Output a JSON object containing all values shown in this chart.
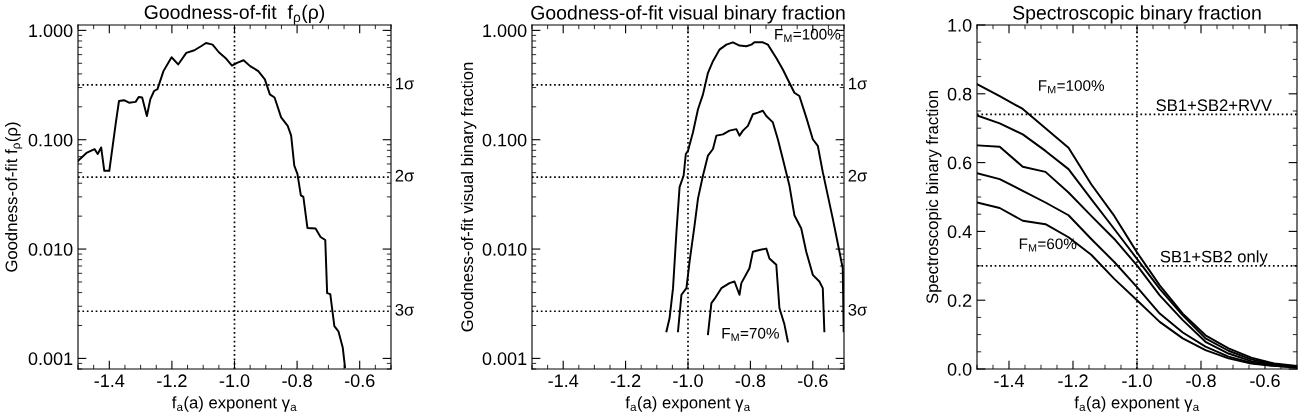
{
  "chart_data": [
    {
      "type": "line",
      "title": "Goodness-of-fit  f$_{ρ}$(ρ)",
      "xlabel": "f$_{a}$(a) exponent γ$_{a}$",
      "ylabel": "Goodness-of-fit f$_{ρ}$(ρ)",
      "log": "y",
      "grid": false,
      "marker": "none",
      "line_style": "solid",
      "xlim": [
        -1.5,
        -0.5
      ],
      "xticks": [
        {
          "value": -1.4,
          "label": "-1.4"
        },
        {
          "value": -1.2,
          "label": "-1.2"
        },
        {
          "value": -1.0,
          "label": "-1.0"
        },
        {
          "value": -0.8,
          "label": "-0.8"
        },
        {
          "value": -0.6,
          "label": "-0.6"
        }
      ],
      "ylim": [
        0.0008,
        1.12
      ],
      "yticks": [
        {
          "value": 0.001,
          "label": "0.001"
        },
        {
          "value": 0.01,
          "label": "0.010"
        },
        {
          "value": 0.1,
          "label": "0.100"
        },
        {
          "value": 1,
          "label": "1.000"
        }
      ],
      "ref_lines": [
        {
          "axis": "y",
          "value": 0.317,
          "label": "1σ",
          "line_style": "dotted",
          "color": "#000000"
        },
        {
          "axis": "y",
          "value": 0.0455,
          "label": "2σ",
          "line_style": "dotted",
          "color": "#000000"
        },
        {
          "axis": "y",
          "value": 0.0027,
          "label": "3σ",
          "line_style": "dotted",
          "color": "#000000"
        },
        {
          "axis": "x",
          "value": -1.0,
          "line_style": "dotted",
          "color": "#000000"
        }
      ],
      "series": [
        {
          "color": "#000000",
          "x": [
            -1.5,
            -1.473,
            -1.447,
            -1.437,
            -1.426,
            -1.416,
            -1.4,
            -1.379,
            -1.369,
            -1.353,
            -1.337,
            -1.316,
            -1.306,
            -1.295,
            -1.28,
            -1.269,
            -1.257,
            -1.246,
            -1.227,
            -1.201,
            -1.18,
            -1.154,
            -1.128,
            -1.107,
            -1.091,
            -1.07,
            -1.05,
            -1.029,
            -1.008,
            -0.992,
            -0.971,
            -0.95,
            -0.924,
            -0.903,
            -0.887,
            -0.872,
            -0.851,
            -0.83,
            -0.819,
            -0.809,
            -0.799,
            -0.788,
            -0.78,
            -0.767,
            -0.741,
            -0.725,
            -0.71,
            -0.704,
            -0.694,
            -0.681,
            -0.668,
            -0.654,
            -0.647
          ],
          "values": [
            0.064,
            0.0757,
            0.082,
            0.074,
            0.085,
            0.052,
            0.052,
            0.144,
            0.226,
            0.23,
            0.218,
            0.222,
            0.246,
            0.243,
            0.165,
            0.234,
            0.279,
            0.29,
            0.424,
            0.568,
            0.488,
            0.622,
            0.658,
            0.716,
            0.767,
            0.741,
            0.631,
            0.56,
            0.477,
            0.505,
            0.533,
            0.471,
            0.424,
            0.356,
            0.26,
            0.243,
            0.16,
            0.134,
            0.109,
            0.058,
            0.0488,
            0.031,
            0.03,
            0.0156,
            0.0154,
            0.0129,
            0.0121,
            0.00395,
            0.00387,
            0.00197,
            0.00177,
            0.00125,
            0.00083
          ]
        }
      ]
    },
    {
      "type": "line",
      "title": "Goodness-of-fit visual binary fraction",
      "xlabel": "f$_{a}$(a) exponent γ$_{a}$",
      "ylabel": "Goodness-of-fit visual binary fraction",
      "log": "y",
      "grid": false,
      "marker": "none",
      "line_style": "solid",
      "xlim": [
        -1.5,
        -0.5
      ],
      "xticks": [
        {
          "value": -1.4,
          "label": "-1.4"
        },
        {
          "value": -1.2,
          "label": "-1.2"
        },
        {
          "value": -1.0,
          "label": "-1.0"
        },
        {
          "value": -0.8,
          "label": "-0.8"
        },
        {
          "value": -0.6,
          "label": "-0.6"
        }
      ],
      "ylim": [
        0.0008,
        1.12
      ],
      "yticks": [
        {
          "value": 0.001,
          "label": "0.001"
        },
        {
          "value": 0.01,
          "label": "0.010"
        },
        {
          "value": 0.1,
          "label": "0.100"
        },
        {
          "value": 1,
          "label": "1.000"
        }
      ],
      "ref_lines": [
        {
          "axis": "y",
          "value": 0.317,
          "label": "1σ",
          "line_style": "dotted",
          "color": "#000000"
        },
        {
          "axis": "y",
          "value": 0.0455,
          "label": "2σ",
          "line_style": "dotted",
          "color": "#000000"
        },
        {
          "axis": "y",
          "value": 0.0027,
          "label": "3σ",
          "line_style": "dotted",
          "color": "#000000"
        },
        {
          "axis": "x",
          "value": -1.0,
          "line_style": "dotted",
          "color": "#000000"
        }
      ],
      "annotations": [
        "F$_{M}$=100%",
        "F$_{M}$=70%"
      ],
      "series": [
        {
          "color": "#000000",
          "x": [
            -1.069,
            -1.059,
            -1.048,
            -1.037,
            -1.027,
            -1.014,
            -1.007,
            -1.0,
            -0.984,
            -0.968,
            -0.952,
            -0.936,
            -0.92,
            -0.899,
            -0.877,
            -0.856,
            -0.835,
            -0.813,
            -0.797,
            -0.787,
            -0.76,
            -0.744,
            -0.717,
            -0.696,
            -0.675,
            -0.659,
            -0.643,
            -0.621,
            -0.6,
            -0.584,
            -0.568,
            -0.552,
            -0.536,
            -0.52,
            -0.504,
            -0.501
          ],
          "values": [
            0.00177,
            0.00234,
            0.00439,
            0.0144,
            0.0369,
            0.0471,
            0.074,
            0.0794,
            0.117,
            0.19,
            0.26,
            0.409,
            0.523,
            0.667,
            0.741,
            0.778,
            0.726,
            0.716,
            0.741,
            0.778,
            0.778,
            0.741,
            0.56,
            0.439,
            0.332,
            0.269,
            0.251,
            0.16,
            0.101,
            0.088,
            0.0505,
            0.031,
            0.019,
            0.0113,
            0.00667,
            0.00177
          ]
        },
        {
          "color": "#000000",
          "x": [
            -1.032,
            -1.021,
            -1.005,
            -0.995,
            -0.979,
            -0.968,
            -0.952,
            -0.936,
            -0.92,
            -0.909,
            -0.888,
            -0.867,
            -0.845,
            -0.835,
            -0.824,
            -0.808,
            -0.792,
            -0.776,
            -0.76,
            -0.749,
            -0.728,
            -0.712,
            -0.696,
            -0.675,
            -0.659,
            -0.637,
            -0.621,
            -0.6,
            -0.579,
            -0.568,
            -0.563
          ],
          "values": [
            0.00177,
            0.00382,
            0.00439,
            0.00767,
            0.0165,
            0.0289,
            0.0471,
            0.0716,
            0.0822,
            0.109,
            0.112,
            0.121,
            0.125,
            0.109,
            0.121,
            0.134,
            0.171,
            0.177,
            0.184,
            0.165,
            0.144,
            0.101,
            0.0667,
            0.0382,
            0.0204,
            0.0154,
            0.00946,
            0.00581,
            0.00505,
            0.00439,
            0.00177
          ]
        },
        {
          "color": "#000000",
          "x": [
            -0.936,
            -0.925,
            -0.915,
            -0.893,
            -0.867,
            -0.851,
            -0.835,
            -0.829,
            -0.803,
            -0.792,
            -0.771,
            -0.749,
            -0.739,
            -0.717,
            -0.707,
            -0.691,
            -0.68
          ],
          "values": [
            0.00167,
            0.0032,
            0.0035,
            0.00439,
            0.00488,
            0.00505,
            0.00382,
            0.00488,
            0.00667,
            0.00946,
            0.0098,
            0.0101,
            0.00821,
            0.00718,
            0.00289,
            0.00205,
            0.00143
          ]
        }
      ]
    },
    {
      "type": "line",
      "title": "Spectroscopic binary fraction",
      "xlabel": "f$_{a}$(a) exponent γ$_{a}$",
      "ylabel": "Spectroscopic binary fraction",
      "grid": false,
      "marker": "none",
      "line_style": "solid",
      "xlim": [
        -1.5,
        -0.5
      ],
      "xticks": [
        {
          "value": -1.4,
          "label": "-1.4"
        },
        {
          "value": -1.2,
          "label": "-1.2"
        },
        {
          "value": -1.0,
          "label": "-1.0"
        },
        {
          "value": -0.8,
          "label": "-0.8"
        },
        {
          "value": -0.6,
          "label": "-0.6"
        }
      ],
      "ylim": [
        0.0,
        1.0
      ],
      "yticks": [
        {
          "value": 0,
          "label": "0.0"
        },
        {
          "value": 0.2,
          "label": "0.2"
        },
        {
          "value": 0.4,
          "label": "0.4"
        },
        {
          "value": 0.6,
          "label": "0.6"
        },
        {
          "value": 0.8,
          "label": "0.8"
        },
        {
          "value": 1,
          "label": "1.0"
        }
      ],
      "ref_lines": [
        {
          "axis": "y",
          "value": 0.74,
          "label": "SB1+SB2+RVV",
          "line_style": "dotted",
          "color": "#000000"
        },
        {
          "axis": "y",
          "value": 0.3,
          "label": "SB1+SB2 only",
          "line_style": "dotted",
          "color": "#000000"
        },
        {
          "axis": "x",
          "value": -1.0,
          "line_style": "dotted",
          "color": "#000000"
        }
      ],
      "annotations": [
        "F$_{M}$=100%",
        "F$_{M}$=60%"
      ],
      "x": [
        -1.5,
        -1.429,
        -1.357,
        -1.286,
        -1.214,
        -1.143,
        -1.071,
        -1.0,
        -0.929,
        -0.857,
        -0.786,
        -0.714,
        -0.643,
        -0.571,
        -0.5
      ],
      "series": [
        {
          "color": "#000000",
          "values": [
            0.828,
            0.793,
            0.756,
            0.7,
            0.643,
            0.537,
            0.445,
            0.339,
            0.243,
            0.161,
            0.098,
            0.06,
            0.033,
            0.016,
            0.009
          ]
        },
        {
          "color": "#000000",
          "values": [
            0.737,
            0.714,
            0.682,
            0.634,
            0.581,
            0.494,
            0.407,
            0.32,
            0.233,
            0.156,
            0.089,
            0.053,
            0.028,
            0.014,
            0.007
          ]
        },
        {
          "color": "#000000",
          "values": [
            0.65,
            0.646,
            0.588,
            0.573,
            0.513,
            0.445,
            0.378,
            0.301,
            0.214,
            0.142,
            0.079,
            0.045,
            0.023,
            0.012,
            0.005
          ]
        },
        {
          "color": "#000000",
          "values": [
            0.569,
            0.552,
            0.518,
            0.484,
            0.447,
            0.378,
            0.311,
            0.238,
            0.161,
            0.106,
            0.065,
            0.036,
            0.018,
            0.009,
            0.004
          ]
        },
        {
          "color": "#000000",
          "values": [
            0.484,
            0.468,
            0.431,
            0.421,
            0.383,
            0.332,
            0.262,
            0.2,
            0.137,
            0.089,
            0.055,
            0.031,
            0.016,
            0.009,
            0.004
          ]
        }
      ]
    }
  ]
}
